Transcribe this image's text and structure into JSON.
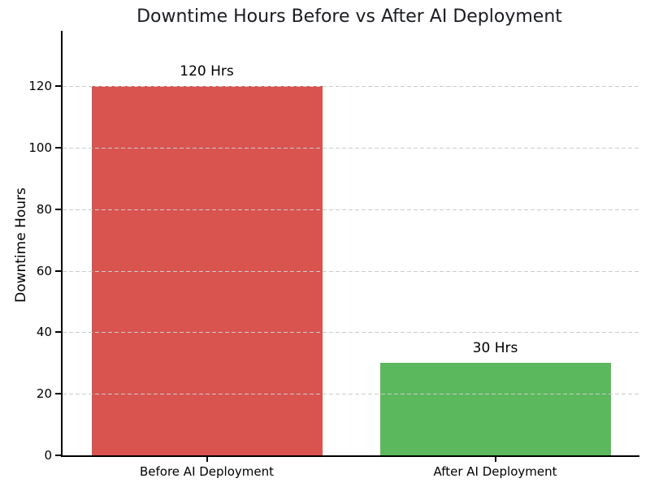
{
  "chart_data": {
    "type": "bar",
    "title": "Downtime Hours Before vs After AI Deployment",
    "xlabel": "",
    "ylabel": "Downtime Hours",
    "categories": [
      "Before AI Deployment",
      "After AI Deployment"
    ],
    "values": [
      120,
      30
    ],
    "bar_labels": [
      "120 Hrs",
      "30 Hrs"
    ],
    "bar_colors": [
      "#d9534f",
      "#5cb85c"
    ],
    "ylim": [
      0,
      138
    ],
    "yticks": [
      0,
      20,
      40,
      60,
      80,
      100,
      120
    ],
    "bar_width_fraction": 0.8,
    "grid": {
      "axis": "y",
      "style": "dashed",
      "color": "#cccccc"
    },
    "legend": "none",
    "title_color": "#1a1c22",
    "axis_color": "#000000",
    "text_color": "#000000",
    "background_color": "#ffffff"
  }
}
